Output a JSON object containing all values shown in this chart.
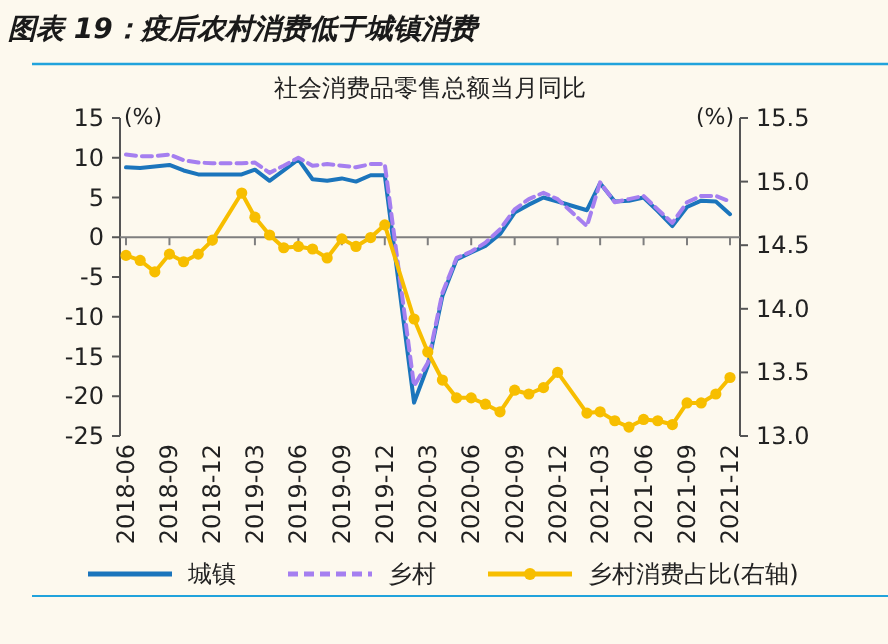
{
  "chart_data": {
    "type": "line",
    "title": "图表 19：疫后农村消费低于城镇消费",
    "subtitle": "社会消费品零售总额当月同比",
    "ylabel": "(%)",
    "y2label": "(%)",
    "x": [
      "2018-06",
      "2018-07",
      "2018-08",
      "2018-09",
      "2018-10",
      "2018-11",
      "2018-12",
      "2019-02",
      "2019-03",
      "2019-04",
      "2019-05",
      "2019-06",
      "2019-07",
      "2019-08",
      "2019-09",
      "2019-10",
      "2019-11",
      "2019-12",
      "2020-02",
      "2020-03",
      "2020-04",
      "2020-05",
      "2020-06",
      "2020-07",
      "2020-08",
      "2020-09",
      "2020-10",
      "2020-11",
      "2020-12",
      "2021-02",
      "2021-03",
      "2021-04",
      "2021-05",
      "2021-06",
      "2021-07",
      "2021-08",
      "2021-09",
      "2021-10",
      "2021-11",
      "2021-12"
    ],
    "series": [
      {
        "name": "城镇",
        "color": "#1b75bc",
        "line_style": "solid",
        "marker": "none",
        "values": [
          8.8,
          8.7,
          8.9,
          9.1,
          8.4,
          7.9,
          7.9,
          7.9,
          8.5,
          7.1,
          8.4,
          9.8,
          7.3,
          7.1,
          7.4,
          7.0,
          7.8,
          7.8,
          -20.8,
          -16.2,
          -7.4,
          -2.8,
          -1.9,
          -1.1,
          0.4,
          3.1,
          4.1,
          5.0,
          4.5,
          3.4,
          6.8,
          4.5,
          4.6,
          5.0,
          3.3,
          1.4,
          3.8,
          4.6,
          4.5,
          2.9
        ]
      },
      {
        "name": "乡村",
        "color": "#a57ff0",
        "line_style": "dashed",
        "marker": "none",
        "values": [
          10.4,
          10.2,
          10.2,
          10.4,
          9.7,
          9.4,
          9.3,
          9.3,
          9.4,
          8.1,
          9.0,
          10.0,
          9.0,
          9.2,
          9.0,
          8.8,
          9.2,
          9.2,
          -18.7,
          -15.8,
          -7.0,
          -2.6,
          -1.8,
          -0.7,
          1.0,
          3.5,
          4.8,
          5.6,
          4.8,
          1.4,
          6.9,
          4.4,
          4.8,
          5.2,
          3.5,
          1.8,
          4.4,
          5.2,
          5.2,
          4.5
        ]
      },
      {
        "name": "乡村消费占比(右轴)",
        "color": "#f7be00",
        "line_style": "solid",
        "marker": "circle",
        "axis": "y2",
        "values": [
          14.42,
          14.38,
          14.29,
          14.43,
          14.37,
          14.43,
          14.54,
          14.91,
          14.72,
          14.58,
          14.48,
          14.49,
          14.47,
          14.4,
          14.55,
          14.49,
          14.56,
          14.66,
          13.92,
          13.66,
          13.44,
          13.3,
          13.3,
          13.25,
          13.19,
          13.36,
          13.33,
          13.38,
          13.5,
          13.18,
          13.19,
          13.12,
          13.07,
          13.13,
          13.12,
          13.09,
          13.26,
          13.26,
          13.33,
          13.46
        ]
      }
    ],
    "xlim": [
      "2018-06",
      "2021-12"
    ],
    "xticks": [
      "2018-06",
      "2018-09",
      "2018-12",
      "2019-03",
      "2019-06",
      "2019-09",
      "2019-12",
      "2020-03",
      "2020-06",
      "2020-09",
      "2020-12",
      "2021-03",
      "2021-06",
      "2021-09",
      "2021-12"
    ],
    "ylim": [
      -25,
      15
    ],
    "yticks": [
      -25,
      -20,
      -15,
      -10,
      -5,
      0,
      5,
      10,
      15
    ],
    "y2lim": [
      13.0,
      15.5
    ],
    "y2ticks": [
      {
        "value": 13.0,
        "label": "13.0"
      },
      {
        "value": 13.5,
        "label": "13.5"
      },
      {
        "value": 14.0,
        "label": "14.0"
      },
      {
        "value": 14.5,
        "label": "14.5"
      },
      {
        "value": 15.0,
        "label": "15.0"
      },
      {
        "value": 15.5,
        "label": "15.5"
      }
    ],
    "ref_lines": [
      {
        "axis": "y",
        "value": 0,
        "color": "#7f7f7f"
      }
    ],
    "grid": false,
    "legend": "bottom"
  }
}
